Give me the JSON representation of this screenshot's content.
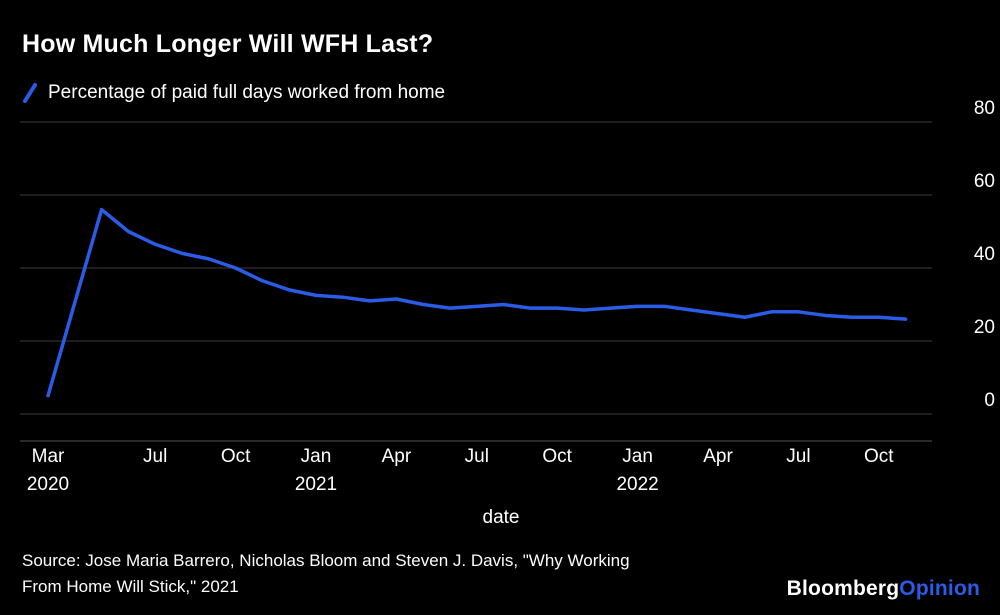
{
  "title": "How Much Longer Will WFH Last?",
  "legend": {
    "label": "Percentage of paid full days worked from home"
  },
  "source": {
    "line1": "Source: Jose Maria Barrero, Nicholas Bloom and Steven J. Davis, \"Why Working",
    "line2": "From Home Will Stick,\" 2021"
  },
  "logo": {
    "brand": "Bloomberg",
    "section": "Opinion"
  },
  "colors": {
    "background": "#000000",
    "text": "#ffffff",
    "accent": "#2b5ce6",
    "line": "#2b5ce6",
    "gridline": "#3d3d3d",
    "axis_line": "#555555"
  },
  "chart_data": {
    "type": "line",
    "title": "How Much Longer Will WFH Last?",
    "xlabel": "date",
    "ylabel": "",
    "ylim": [
      0,
      80
    ],
    "grid": true,
    "legend_position": "top-left",
    "y_ticks": [
      0,
      20,
      40,
      60,
      80
    ],
    "x_ticks": [
      {
        "m": 0,
        "label": "Mar",
        "year": "2020"
      },
      {
        "m": 4,
        "label": "Jul"
      },
      {
        "m": 7,
        "label": "Oct"
      },
      {
        "m": 10,
        "label": "Jan",
        "year": "2021"
      },
      {
        "m": 13,
        "label": "Apr"
      },
      {
        "m": 16,
        "label": "Jul"
      },
      {
        "m": 19,
        "label": "Oct"
      },
      {
        "m": 22,
        "label": "Jan",
        "year": "2022"
      },
      {
        "m": 25,
        "label": "Apr"
      },
      {
        "m": 28,
        "label": "Jul"
      },
      {
        "m": 31,
        "label": "Oct"
      }
    ],
    "series": [
      {
        "name": "Percentage of paid full days worked from home",
        "x_unit": "months since Mar 2020",
        "points": [
          [
            0,
            5
          ],
          [
            2,
            56
          ],
          [
            3,
            50
          ],
          [
            4,
            46.5
          ],
          [
            5,
            44
          ],
          [
            6,
            42.5
          ],
          [
            7,
            40
          ],
          [
            8,
            36.5
          ],
          [
            9,
            34
          ],
          [
            10,
            32.5
          ],
          [
            11,
            32
          ],
          [
            12,
            31
          ],
          [
            13,
            31.5
          ],
          [
            14,
            30
          ],
          [
            15,
            29
          ],
          [
            16,
            29.5
          ],
          [
            17,
            30
          ],
          [
            18,
            29
          ],
          [
            19,
            29
          ],
          [
            20,
            28.5
          ],
          [
            21,
            29
          ],
          [
            22,
            29.5
          ],
          [
            23,
            29.5
          ],
          [
            24,
            28.5
          ],
          [
            25,
            27.5
          ],
          [
            26,
            26.5
          ],
          [
            27,
            28
          ],
          [
            28,
            28
          ],
          [
            29,
            27
          ],
          [
            30,
            26.5
          ],
          [
            31,
            26.5
          ],
          [
            32,
            26
          ]
        ]
      }
    ]
  }
}
